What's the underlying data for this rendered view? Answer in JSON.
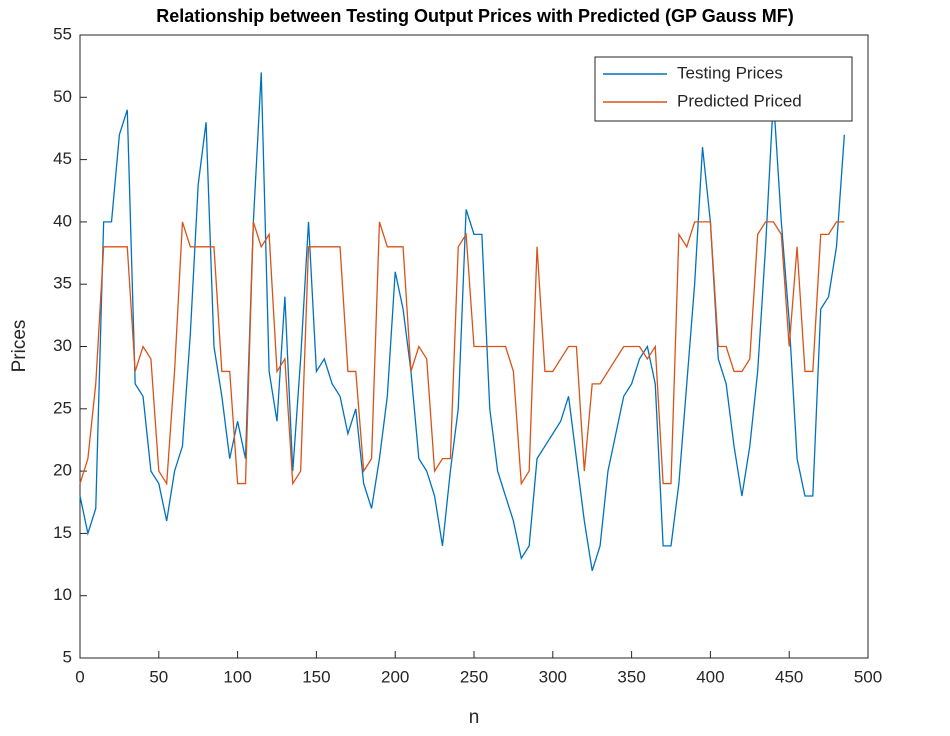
{
  "chart_data": {
    "type": "line",
    "title": "Relationship between Testing Output Prices with Predicted (GP Gauss MF)",
    "xlabel": "n",
    "ylabel": "Prices",
    "x": [
      0,
      5,
      10,
      15,
      20,
      25,
      30,
      35,
      40,
      45,
      50,
      55,
      60,
      65,
      70,
      75,
      80,
      85,
      90,
      95,
      100,
      105,
      110,
      115,
      120,
      125,
      130,
      135,
      140,
      145,
      150,
      155,
      160,
      165,
      170,
      175,
      180,
      185,
      190,
      195,
      200,
      205,
      210,
      215,
      220,
      225,
      230,
      235,
      240,
      245,
      250,
      255,
      260,
      265,
      270,
      275,
      280,
      285,
      290,
      295,
      300,
      305,
      310,
      315,
      320,
      325,
      330,
      335,
      340,
      345,
      350,
      355,
      360,
      365,
      370,
      375,
      380,
      385,
      390,
      395,
      400,
      405,
      410,
      415,
      420,
      425,
      430,
      435,
      440,
      445,
      450,
      455,
      460,
      465,
      470,
      475,
      480,
      485
    ],
    "series": [
      {
        "name": "Testing Prices",
        "color": "#0072bd",
        "values": [
          18,
          15,
          17,
          40,
          40,
          47,
          49,
          27,
          26,
          20,
          19,
          16,
          20,
          22,
          31,
          43,
          48,
          30,
          26,
          21,
          24,
          21,
          40,
          52,
          28,
          24,
          34,
          20,
          29,
          40,
          28,
          29,
          27,
          26,
          23,
          25,
          19,
          17,
          21,
          26,
          36,
          33,
          28,
          21,
          20,
          18,
          14,
          20,
          25,
          41,
          39,
          39,
          25,
          20,
          18,
          16,
          13,
          14,
          21,
          22,
          23,
          24,
          26,
          21,
          16,
          12,
          14,
          20,
          23,
          26,
          27,
          29,
          30,
          27,
          14,
          14,
          19,
          27,
          35,
          46,
          40,
          29,
          27,
          22,
          18,
          22,
          28,
          38,
          50,
          40,
          32,
          21,
          18,
          18,
          33,
          34,
          38,
          47
        ]
      },
      {
        "name": "Predicted Priced",
        "color": "#d95319",
        "values": [
          19,
          21,
          27,
          38,
          38,
          38,
          38,
          28,
          30,
          29,
          20,
          19,
          28,
          40,
          38,
          38,
          38,
          38,
          28,
          28,
          19,
          19,
          40,
          38,
          39,
          28,
          29,
          19,
          20,
          38,
          38,
          38,
          38,
          38,
          28,
          28,
          20,
          21,
          40,
          38,
          38,
          38,
          28,
          30,
          29,
          20,
          21,
          21,
          38,
          39,
          30,
          30,
          30,
          30,
          30,
          28,
          19,
          20,
          38,
          28,
          28,
          29,
          30,
          30,
          20,
          27,
          27,
          28,
          29,
          30,
          30,
          30,
          29,
          30,
          19,
          19,
          39,
          38,
          40,
          40,
          40,
          30,
          30,
          28,
          28,
          29,
          39,
          40,
          40,
          39,
          30,
          38,
          28,
          28,
          39,
          39,
          40,
          40
        ]
      }
    ],
    "xlim": [
      0,
      500
    ],
    "xticks": [
      0,
      50,
      100,
      150,
      200,
      250,
      300,
      350,
      400,
      450,
      500
    ],
    "ylim": [
      5,
      55
    ],
    "yticks": [
      5,
      10,
      15,
      20,
      25,
      30,
      35,
      40,
      45,
      50,
      55
    ],
    "grid": false,
    "legend": "top-right"
  }
}
